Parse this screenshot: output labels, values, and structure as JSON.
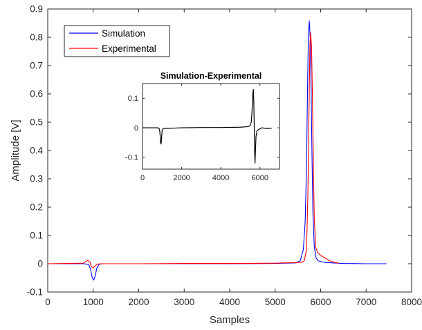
{
  "chart_data": [
    {
      "type": "line",
      "xlabel": "Samples",
      "ylabel": "Amplitude [V]",
      "xlim": [
        0,
        8000
      ],
      "ylim": [
        -0.1,
        0.9
      ],
      "xticks": [
        0,
        1000,
        2000,
        3000,
        4000,
        5000,
        6000,
        7000,
        8000
      ],
      "xtick_labels": [
        "0",
        "1000",
        "2000",
        "3000",
        "4000",
        "5000",
        "6000",
        "7000",
        "8000"
      ],
      "yticks": [
        -0.1,
        0,
        0.1,
        0.2,
        0.3,
        0.4,
        0.5,
        0.6,
        0.7,
        0.8,
        0.9
      ],
      "ytick_labels": [
        "-0.1",
        "0",
        "0.1",
        "0.2",
        "0.3",
        "0.4",
        "0.5",
        "0.6",
        "0.7",
        "0.8",
        "0.9"
      ],
      "grid": false,
      "legend": "top-left",
      "series": [
        {
          "name": "Simulation",
          "color": "#0000ff",
          "points": [
            [
              0,
              0
            ],
            [
              800,
              0
            ],
            [
              900,
              -0.003
            ],
            [
              940,
              -0.02
            ],
            [
              980,
              -0.05
            ],
            [
              1010,
              -0.058
            ],
            [
              1040,
              -0.045
            ],
            [
              1080,
              -0.015
            ],
            [
              1130,
              -0.002
            ],
            [
              1200,
              0
            ],
            [
              2000,
              0
            ],
            [
              3000,
              0
            ],
            [
              4000,
              0
            ],
            [
              5000,
              0.001
            ],
            [
              5450,
              0.003
            ],
            [
              5550,
              0.01
            ],
            [
              5620,
              0.05
            ],
            [
              5660,
              0.15
            ],
            [
              5690,
              0.35
            ],
            [
              5710,
              0.6
            ],
            [
              5730,
              0.8
            ],
            [
              5750,
              0.858
            ],
            [
              5770,
              0.8
            ],
            [
              5790,
              0.62
            ],
            [
              5810,
              0.38
            ],
            [
              5830,
              0.18
            ],
            [
              5860,
              0.06
            ],
            [
              5900,
              0.02
            ],
            [
              5950,
              0.01
            ],
            [
              6100,
              0.004
            ],
            [
              6500,
              0.001
            ],
            [
              7000,
              0
            ],
            [
              7450,
              0
            ]
          ]
        },
        {
          "name": "Experimental",
          "color": "#ff0000",
          "points": [
            [
              0,
              0
            ],
            [
              780,
              0.002
            ],
            [
              840,
              0.008
            ],
            [
              880,
              0.012
            ],
            [
              930,
              0.005
            ],
            [
              960,
              -0.01
            ],
            [
              1000,
              -0.015
            ],
            [
              1040,
              -0.008
            ],
            [
              1080,
              -0.002
            ],
            [
              1150,
              0
            ],
            [
              2000,
              0
            ],
            [
              3000,
              0.001
            ],
            [
              4000,
              0.001
            ],
            [
              5000,
              0.002
            ],
            [
              5450,
              0.004
            ],
            [
              5580,
              0.005
            ],
            [
              5640,
              0.01
            ],
            [
              5690,
              0.05
            ],
            [
              5720,
              0.25
            ],
            [
              5745,
              0.55
            ],
            [
              5765,
              0.78
            ],
            [
              5780,
              0.815
            ],
            [
              5800,
              0.77
            ],
            [
              5820,
              0.58
            ],
            [
              5840,
              0.35
            ],
            [
              5860,
              0.16
            ],
            [
              5890,
              0.06
            ],
            [
              5930,
              0.04
            ],
            [
              6000,
              0.03
            ],
            [
              6100,
              0.02
            ],
            [
              6200,
              0.01
            ],
            [
              6300,
              0.005
            ],
            [
              6400,
              0.002
            ]
          ]
        }
      ]
    },
    {
      "type": "line",
      "title": "Simulation-Experimental",
      "xlim": [
        0,
        7000
      ],
      "ylim": [
        -0.14,
        0.15
      ],
      "xticks": [
        0,
        2000,
        4000,
        6000
      ],
      "xtick_labels": [
        "0",
        "2000",
        "4000",
        "6000"
      ],
      "yticks": [
        -0.1,
        0,
        0.1
      ],
      "ytick_labels": [
        "-0.1",
        "0",
        "0.1"
      ],
      "grid": false,
      "series": [
        {
          "color": "#000000",
          "points": [
            [
              0,
              0
            ],
            [
              800,
              0
            ],
            [
              870,
              -0.004
            ],
            [
              900,
              -0.025
            ],
            [
              920,
              -0.05
            ],
            [
              950,
              -0.055
            ],
            [
              975,
              -0.035
            ],
            [
              1000,
              -0.01
            ],
            [
              1050,
              -0.002
            ],
            [
              1200,
              -0.002
            ],
            [
              2000,
              0
            ],
            [
              3000,
              0.001
            ],
            [
              4000,
              0.001
            ],
            [
              5000,
              0.002
            ],
            [
              5400,
              0.004
            ],
            [
              5500,
              0.008
            ],
            [
              5560,
              0.02
            ],
            [
              5600,
              0.06
            ],
            [
              5640,
              0.12
            ],
            [
              5665,
              0.13
            ],
            [
              5690,
              0.08
            ],
            [
              5710,
              0.0
            ],
            [
              5730,
              -0.08
            ],
            [
              5750,
              -0.12
            ],
            [
              5770,
              -0.08
            ],
            [
              5800,
              -0.03
            ],
            [
              5850,
              -0.01
            ],
            [
              5950,
              -0.005
            ],
            [
              6100,
              0
            ],
            [
              6300,
              -0.002
            ],
            [
              6500,
              -0.002
            ],
            [
              6600,
              -0.001
            ]
          ]
        }
      ]
    }
  ]
}
